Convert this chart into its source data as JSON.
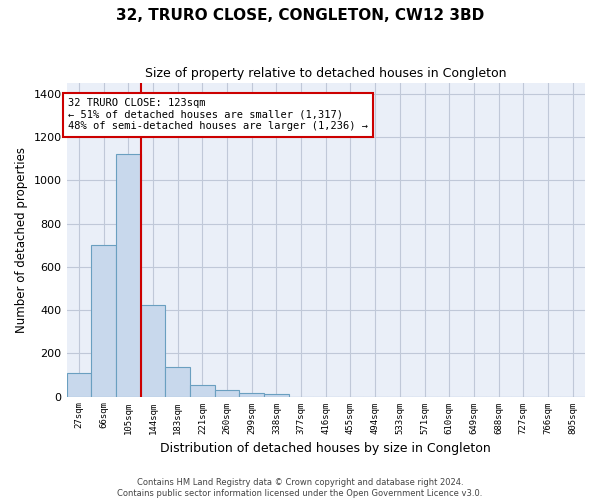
{
  "title": "32, TRURO CLOSE, CONGLETON, CW12 3BD",
  "subtitle": "Size of property relative to detached houses in Congleton",
  "xlabel": "Distribution of detached houses by size in Congleton",
  "ylabel": "Number of detached properties",
  "bar_color": "#c8d8ec",
  "bar_edge_color": "#6a9fc0",
  "bin_labels": [
    "27sqm",
    "66sqm",
    "105sqm",
    "144sqm",
    "183sqm",
    "221sqm",
    "260sqm",
    "299sqm",
    "338sqm",
    "377sqm",
    "416sqm",
    "455sqm",
    "494sqm",
    "533sqm",
    "571sqm",
    "610sqm",
    "649sqm",
    "688sqm",
    "727sqm",
    "766sqm",
    "805sqm"
  ],
  "bar_values": [
    110,
    700,
    1120,
    425,
    135,
    52,
    32,
    18,
    13,
    0,
    0,
    0,
    0,
    0,
    0,
    0,
    0,
    0,
    0,
    0,
    0
  ],
  "vline_x": 2.5,
  "vline_color": "#cc0000",
  "annotation_text": "32 TRURO CLOSE: 123sqm\n← 51% of detached houses are smaller (1,317)\n48% of semi-detached houses are larger (1,236) →",
  "annotation_box_color": "#ffffff",
  "annotation_box_edge": "#cc0000",
  "ylim": [
    0,
    1450
  ],
  "yticks": [
    0,
    200,
    400,
    600,
    800,
    1000,
    1200,
    1400
  ],
  "grid_color": "#c0c8d8",
  "bg_color": "#eaeff8",
  "footer_line1": "Contains HM Land Registry data © Crown copyright and database right 2024.",
  "footer_line2": "Contains public sector information licensed under the Open Government Licence v3.0."
}
